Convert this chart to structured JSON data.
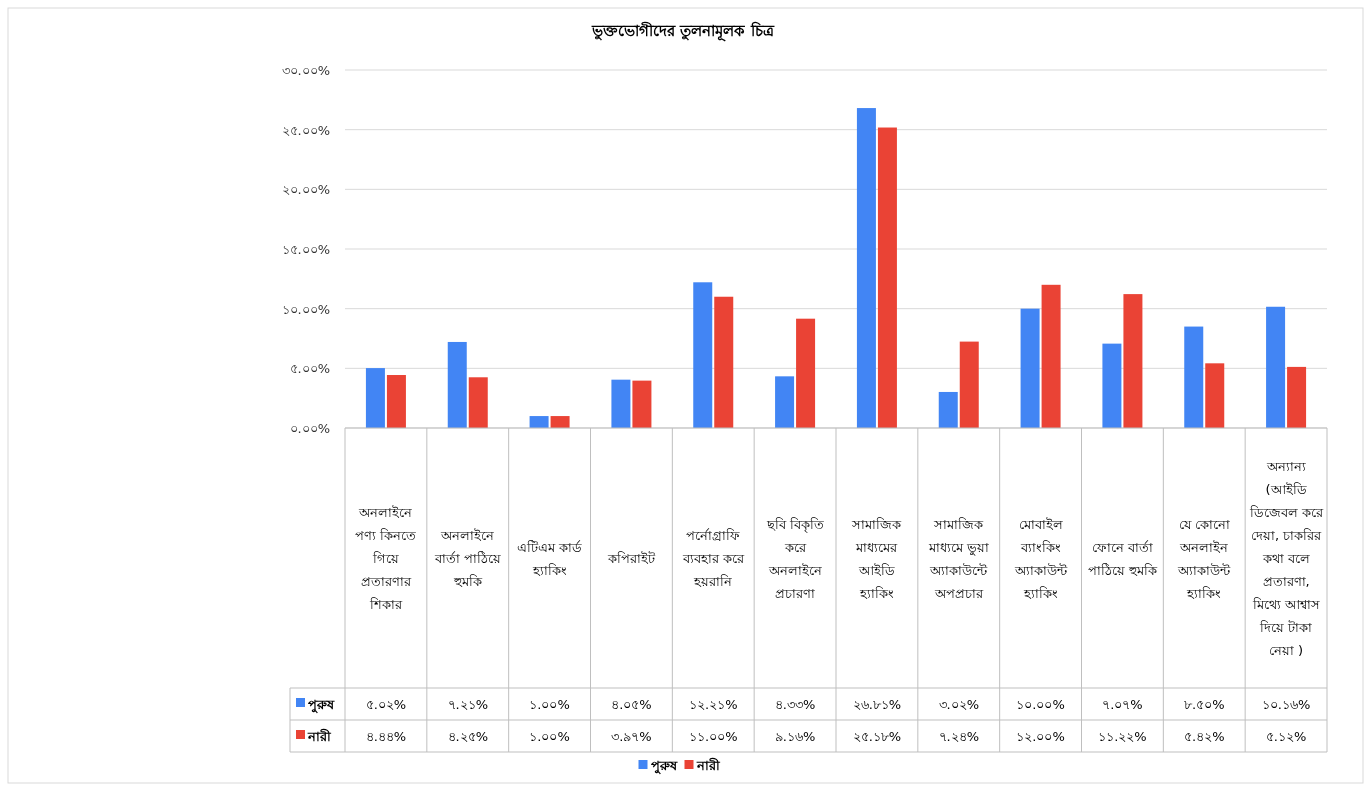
{
  "chart_data": {
    "type": "bar",
    "title": "ভুক্তভোগীদের তুলনামূলক চিত্র",
    "categories": [
      "অনলাইনে পণ্য কিনতে গিয়ে প্রতারণার শিকার",
      "অনলাইনে বার্তা পাঠিয়ে হুমকি",
      "এটিএম কার্ড হ্যাকিং",
      "কপিরাইট",
      "পর্নোগ্রাফি ব্যবহার করে হয়রানি",
      "ছবি বিকৃতি করে অনলাইনে প্রচারণা",
      "সামাজিক মাধ্যমের আইডি হ্যাকিং",
      "সামাজিক মাধ্যমে ভুয়া অ্যাকাউন্টে অপপ্রচার",
      "মোবাইল ব্যাংকিং অ্যাকাউন্ট হ্যাকিং",
      "ফোনে বার্তা পাঠিয়ে হুমকি",
      "যে কোনো অনলাইন অ্যাকাউন্ট হ্যাকিং",
      "অন্যান্য (আইডি ডিজেবল করে দেয়া, চাকরির কথা বলে প্রতারণা, মিথ্যে আশ্বাস দিয়ে টাকা নেয়া )"
    ],
    "series": [
      {
        "name": "পুরুষ",
        "color": "#4285f4",
        "values": [
          5.02,
          7.21,
          1.0,
          4.05,
          12.21,
          4.33,
          26.81,
          3.02,
          10.0,
          7.07,
          8.5,
          10.16
        ],
        "value_labels": [
          "৫.০২%",
          "৭.২১%",
          "১.০০%",
          "৪.০৫%",
          "১২.২১%",
          "৪.৩৩%",
          "২৬.৮১%",
          "৩.০২%",
          "১০.০০%",
          "৭.০৭%",
          "৮.৫০%",
          "১০.১৬%"
        ]
      },
      {
        "name": "নারী",
        "color": "#ea4335",
        "values": [
          4.44,
          4.25,
          1.0,
          3.97,
          11.0,
          9.16,
          25.18,
          7.24,
          12.0,
          11.22,
          5.42,
          5.12
        ],
        "value_labels": [
          "৪.৪৪%",
          "৪.২৫%",
          "১.০০%",
          "৩.৯৭%",
          "১১.০০%",
          "৯.১৬%",
          "২৫.১৮%",
          "৭.২৪%",
          "১২.০০%",
          "১১.২২%",
          "৫.৪২%",
          "৫.১২%"
        ]
      }
    ],
    "ylim": [
      0,
      30
    ],
    "yticks": [
      {
        "value": 0,
        "label": "০.০০%"
      },
      {
        "value": 5,
        "label": "৫.০০%"
      },
      {
        "value": 10,
        "label": "১০.০০%"
      },
      {
        "value": 15,
        "label": "১৫.০০%"
      },
      {
        "value": 20,
        "label": "২০.০০%"
      },
      {
        "value": 25,
        "label": "২৫.০০%"
      },
      {
        "value": 30,
        "label": "৩০.০০%"
      }
    ],
    "grid": "y",
    "legend": "bottom"
  }
}
